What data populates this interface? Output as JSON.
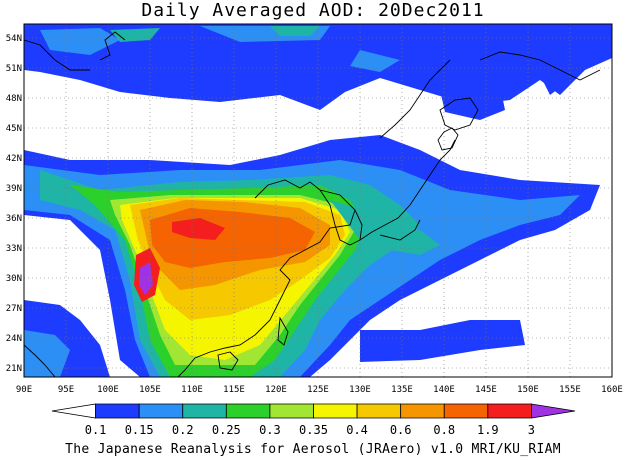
{
  "title": "Daily Averaged AOD: 20Dec2011",
  "credit": "The Japanese Reanalysis for Aerosol (JRAero) v1.0 MRI/KU_RIAM",
  "axes": {
    "lon_ticks": [
      "90E",
      "95E",
      "100E",
      "105E",
      "110E",
      "115E",
      "120E",
      "125E",
      "130E",
      "135E",
      "140E",
      "145E",
      "150E",
      "155E",
      "160E"
    ],
    "lat_ticks": [
      "54N",
      "51N",
      "48N",
      "45N",
      "42N",
      "39N",
      "36N",
      "33N",
      "30N",
      "27N",
      "24N",
      "21N"
    ]
  },
  "colorbar": {
    "labels": [
      "0.1",
      "0.15",
      "0.2",
      "0.25",
      "0.3",
      "0.35",
      "0.4",
      "0.6",
      "0.8",
      "1.9",
      "3"
    ],
    "colors": [
      "#ffffff",
      "#1e3cff",
      "#2b8ff5",
      "#1fb5a6",
      "#2bd02b",
      "#a0e632",
      "#f5f500",
      "#f5c800",
      "#f59600",
      "#f56400",
      "#f51e1e",
      "#a032e6"
    ]
  },
  "chart_data": {
    "type": "heatmap",
    "title": "Daily Averaged AOD: 20Dec2011",
    "x_range": [
      90,
      160
    ],
    "y_range": [
      20,
      55
    ],
    "levels": [
      0.1,
      0.15,
      0.2,
      0.25,
      0.3,
      0.35,
      0.4,
      0.6,
      0.8,
      1.9,
      3
    ]
  }
}
